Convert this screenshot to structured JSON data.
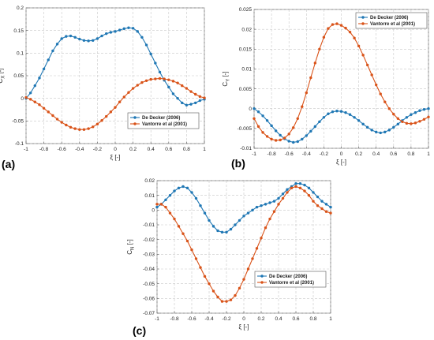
{
  "colors": {
    "blue": "#1f77b4",
    "orange": "#d95319"
  },
  "chart_data": [
    {
      "id": "a",
      "type": "line",
      "panel_label": "(a)",
      "xlabel": "ξ [-]",
      "ylabel": "C",
      "ylabel_sub": "X",
      "ylabel_unit": " [-]",
      "xlim": [
        -1,
        1
      ],
      "ylim": [
        -0.1,
        0.2
      ],
      "xticks": [
        -1,
        -0.8,
        -0.6,
        -0.4,
        -0.2,
        0,
        0.2,
        0.4,
        0.6,
        0.8,
        1
      ],
      "xtick_labels": [
        "-1",
        "-0.8",
        "-0.6",
        "-0.4",
        "-0.2",
        "0",
        "0.2",
        "0.4",
        "0.6",
        "0.8",
        "1"
      ],
      "yticks": [
        -0.1,
        -0.05,
        0,
        0.05,
        0.1,
        0.15,
        0.2
      ],
      "ytick_labels": [
        "-0.1",
        "-0.05",
        "0",
        "0.05",
        "0.1",
        "0.15",
        "0.2"
      ],
      "grid": true,
      "legend_position": "bottom-right",
      "series": [
        {
          "name": "De Decker (2006)",
          "color": "blue",
          "x": [
            -1,
            -0.95,
            -0.9,
            -0.85,
            -0.8,
            -0.75,
            -0.7,
            -0.65,
            -0.6,
            -0.55,
            -0.5,
            -0.45,
            -0.4,
            -0.35,
            -0.3,
            -0.25,
            -0.2,
            -0.15,
            -0.1,
            -0.05,
            0,
            0.05,
            0.1,
            0.15,
            0.2,
            0.25,
            0.3,
            0.35,
            0.4,
            0.45,
            0.5,
            0.55,
            0.6,
            0.65,
            0.7,
            0.75,
            0.8,
            0.85,
            0.9,
            0.95,
            1
          ],
          "y": [
            0,
            0.012,
            0.028,
            0.045,
            0.065,
            0.085,
            0.105,
            0.12,
            0.132,
            0.137,
            0.138,
            0.135,
            0.131,
            0.128,
            0.127,
            0.128,
            0.132,
            0.138,
            0.143,
            0.146,
            0.148,
            0.151,
            0.154,
            0.156,
            0.155,
            0.148,
            0.135,
            0.118,
            0.098,
            0.078,
            0.058,
            0.04,
            0.025,
            0.01,
            0,
            -0.01,
            -0.015,
            -0.013,
            -0.01,
            -0.005,
            -0.002
          ]
        },
        {
          "name": "Vantorre et al (2001)",
          "color": "orange",
          "x": [
            -1,
            -0.95,
            -0.9,
            -0.85,
            -0.8,
            -0.75,
            -0.7,
            -0.65,
            -0.6,
            -0.55,
            -0.5,
            -0.45,
            -0.4,
            -0.35,
            -0.3,
            -0.25,
            -0.2,
            -0.15,
            -0.1,
            -0.05,
            0,
            0.05,
            0.1,
            0.15,
            0.2,
            0.25,
            0.3,
            0.35,
            0.4,
            0.45,
            0.5,
            0.55,
            0.6,
            0.65,
            0.7,
            0.75,
            0.8,
            0.85,
            0.9,
            0.95,
            1
          ],
          "y": [
            0.002,
            -0.002,
            -0.008,
            -0.014,
            -0.022,
            -0.03,
            -0.038,
            -0.046,
            -0.053,
            -0.059,
            -0.064,
            -0.067,
            -0.069,
            -0.069,
            -0.067,
            -0.063,
            -0.057,
            -0.049,
            -0.04,
            -0.03,
            -0.02,
            -0.008,
            0.003,
            0.013,
            0.022,
            0.029,
            0.035,
            0.039,
            0.042,
            0.043,
            0.044,
            0.043,
            0.041,
            0.038,
            0.034,
            0.028,
            0.022,
            0.015,
            0.009,
            0.004,
            0.001
          ]
        }
      ]
    },
    {
      "id": "b",
      "type": "line",
      "panel_label": "(b)",
      "xlabel": "ξ [-]",
      "ylabel": "C",
      "ylabel_sub": "Y",
      "ylabel_unit": " [-]",
      "xlim": [
        -1,
        1
      ],
      "ylim": [
        -0.01,
        0.025
      ],
      "xticks": [
        -1,
        -0.8,
        -0.6,
        -0.4,
        -0.2,
        0,
        0.2,
        0.4,
        0.6,
        0.8,
        1
      ],
      "xtick_labels": [
        "-1",
        "-0.8",
        "-0.6",
        "-0.4",
        "-0.2",
        "0",
        "0.2",
        "0.4",
        "0.6",
        "0.8",
        "1"
      ],
      "yticks": [
        -0.01,
        -0.005,
        0,
        0.005,
        0.01,
        0.015,
        0.02,
        0.025
      ],
      "ytick_labels": [
        "-0.01",
        "-0.005",
        "0",
        "0.005",
        "0.01",
        "0.015",
        "0.02",
        "0.025"
      ],
      "grid": true,
      "legend_position": "top-right",
      "series": [
        {
          "name": "De Decker (2006)",
          "color": "blue",
          "x": [
            -1,
            -0.95,
            -0.9,
            -0.85,
            -0.8,
            -0.75,
            -0.7,
            -0.65,
            -0.6,
            -0.55,
            -0.5,
            -0.45,
            -0.4,
            -0.35,
            -0.3,
            -0.25,
            -0.2,
            -0.15,
            -0.1,
            -0.05,
            0,
            0.05,
            0.1,
            0.15,
            0.2,
            0.25,
            0.3,
            0.35,
            0.4,
            0.45,
            0.5,
            0.55,
            0.6,
            0.65,
            0.7,
            0.75,
            0.8,
            0.85,
            0.9,
            0.95,
            1
          ],
          "y": [
            0,
            -0.0008,
            -0.0018,
            -0.003,
            -0.0043,
            -0.0056,
            -0.0067,
            -0.0076,
            -0.0082,
            -0.0085,
            -0.0083,
            -0.0077,
            -0.0068,
            -0.0057,
            -0.0045,
            -0.0033,
            -0.0022,
            -0.0013,
            -0.0008,
            -0.0006,
            -0.0007,
            -0.001,
            -0.0015,
            -0.0022,
            -0.003,
            -0.0039,
            -0.0047,
            -0.0054,
            -0.0059,
            -0.0061,
            -0.0059,
            -0.0054,
            -0.0047,
            -0.0039,
            -0.003,
            -0.0022,
            -0.0015,
            -0.001,
            -0.0005,
            -0.0002,
            0
          ]
        },
        {
          "name": "Vantorre et al (2001)",
          "color": "orange",
          "x": [
            -1,
            -0.95,
            -0.9,
            -0.85,
            -0.8,
            -0.75,
            -0.7,
            -0.65,
            -0.6,
            -0.55,
            -0.5,
            -0.45,
            -0.4,
            -0.35,
            -0.3,
            -0.25,
            -0.2,
            -0.15,
            -0.1,
            -0.05,
            0,
            0.05,
            0.1,
            0.15,
            0.2,
            0.25,
            0.3,
            0.35,
            0.4,
            0.45,
            0.5,
            0.55,
            0.6,
            0.65,
            0.7,
            0.75,
            0.8,
            0.85,
            0.9,
            0.95,
            1
          ],
          "y": [
            -0.0025,
            -0.0045,
            -0.006,
            -0.007,
            -0.0077,
            -0.008,
            -0.0079,
            -0.0074,
            -0.0064,
            -0.0048,
            -0.0025,
            0.0005,
            0.004,
            0.0078,
            0.0115,
            0.015,
            0.018,
            0.0202,
            0.0212,
            0.0214,
            0.021,
            0.0203,
            0.0193,
            0.0178,
            0.0158,
            0.0135,
            0.011,
            0.0085,
            0.006,
            0.0037,
            0.0017,
            0,
            -0.0014,
            -0.0025,
            -0.0033,
            -0.0037,
            -0.0038,
            -0.0036,
            -0.0032,
            -0.0027,
            -0.0021
          ]
        }
      ]
    },
    {
      "id": "c",
      "type": "line",
      "panel_label": "(c)",
      "xlabel": "ξ [-]",
      "ylabel": "C",
      "ylabel_sub": "N",
      "ylabel_unit": " [-]",
      "xlim": [
        -1,
        1
      ],
      "ylim": [
        -0.07,
        0.02
      ],
      "xticks": [
        -1,
        -0.8,
        -0.6,
        -0.4,
        -0.2,
        0,
        0.2,
        0.4,
        0.6,
        0.8,
        1
      ],
      "xtick_labels": [
        "-1",
        "-0.8",
        "-0.6",
        "-0.4",
        "-0.2",
        "0",
        "0.2",
        "0.4",
        "0.6",
        "0.8",
        "1"
      ],
      "yticks": [
        -0.07,
        -0.06,
        -0.05,
        -0.04,
        -0.03,
        -0.02,
        -0.01,
        0,
        0.01,
        0.02
      ],
      "ytick_labels": [
        "-0.07",
        "-0.06",
        "-0.05",
        "-0.04",
        "-0.03",
        "-0.02",
        "-0.01",
        "0",
        "0.01",
        "0.02"
      ],
      "grid": true,
      "legend_position": "bottom-right",
      "series": [
        {
          "name": "De Decker (2006)",
          "color": "blue",
          "x": [
            -1,
            -0.95,
            -0.9,
            -0.85,
            -0.8,
            -0.75,
            -0.7,
            -0.65,
            -0.6,
            -0.55,
            -0.5,
            -0.45,
            -0.4,
            -0.35,
            -0.3,
            -0.25,
            -0.2,
            -0.15,
            -0.1,
            -0.05,
            0,
            0.05,
            0.1,
            0.15,
            0.2,
            0.25,
            0.3,
            0.35,
            0.4,
            0.45,
            0.5,
            0.55,
            0.6,
            0.65,
            0.7,
            0.75,
            0.8,
            0.85,
            0.9,
            0.95,
            1
          ],
          "y": [
            0.002,
            0.004,
            0.007,
            0.01,
            0.013,
            0.015,
            0.016,
            0.015,
            0.012,
            0.008,
            0.003,
            -0.002,
            -0.007,
            -0.011,
            -0.014,
            -0.015,
            -0.015,
            -0.013,
            -0.01,
            -0.007,
            -0.004,
            -0.002,
            0,
            0.002,
            0.003,
            0.004,
            0.005,
            0.006,
            0.008,
            0.011,
            0.014,
            0.016,
            0.018,
            0.018,
            0.017,
            0.015,
            0.012,
            0.009,
            0.006,
            0.004,
            0.002
          ]
        },
        {
          "name": "Vantorre et al (2001)",
          "color": "orange",
          "x": [
            -1,
            -0.95,
            -0.9,
            -0.85,
            -0.8,
            -0.75,
            -0.7,
            -0.65,
            -0.6,
            -0.55,
            -0.5,
            -0.45,
            -0.4,
            -0.35,
            -0.3,
            -0.25,
            -0.2,
            -0.15,
            -0.1,
            -0.05,
            0,
            0.05,
            0.1,
            0.15,
            0.2,
            0.25,
            0.3,
            0.35,
            0.4,
            0.45,
            0.5,
            0.55,
            0.6,
            0.65,
            0.7,
            0.75,
            0.8,
            0.85,
            0.9,
            0.95,
            1
          ],
          "y": [
            0.004,
            0.004,
            0.002,
            -0.002,
            -0.006,
            -0.011,
            -0.016,
            -0.021,
            -0.027,
            -0.033,
            -0.039,
            -0.045,
            -0.05,
            -0.055,
            -0.059,
            -0.062,
            -0.062,
            -0.061,
            -0.058,
            -0.053,
            -0.047,
            -0.04,
            -0.033,
            -0.026,
            -0.019,
            -0.012,
            -0.006,
            -0.001,
            0.004,
            0.008,
            0.012,
            0.015,
            0.016,
            0.015,
            0.013,
            0.01,
            0.006,
            0.003,
            0.001,
            -0.001,
            -0.002
          ]
        }
      ]
    }
  ]
}
